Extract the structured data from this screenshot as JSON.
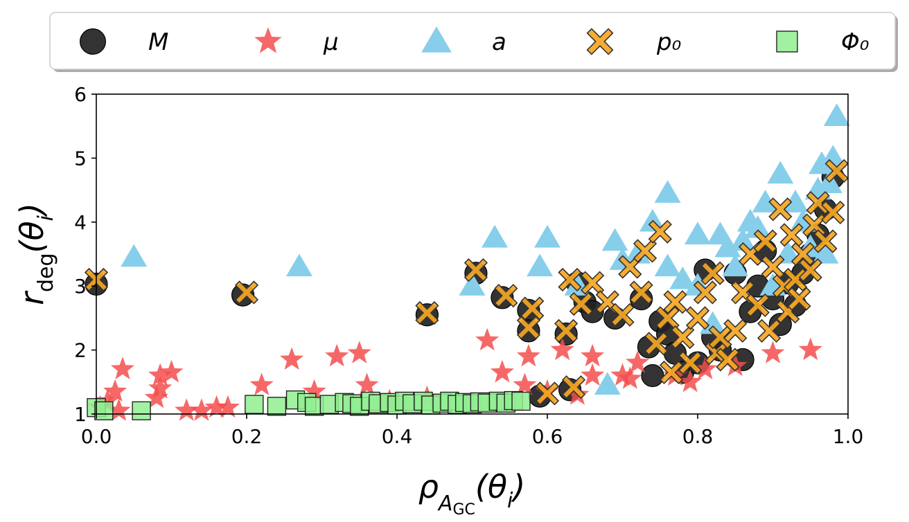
{
  "chart_data": {
    "type": "scatter",
    "xlabel": "ρ_{A_GC}(θ_i)",
    "ylabel": "r_deg(θ_i)",
    "xlim": [
      0.0,
      1.0
    ],
    "ylim": [
      1,
      6
    ],
    "x_ticks": [
      "0.0",
      "0.2",
      "0.4",
      "0.6",
      "0.8",
      "1.0"
    ],
    "y_ticks": [
      "1",
      "2",
      "3",
      "4",
      "5",
      "6"
    ],
    "grid": false,
    "legend_position": "top, above plot, single row",
    "series": [
      {
        "name": "M",
        "marker": "circle",
        "color": "#222222",
        "points": [
          [
            0.0,
            3.03
          ],
          [
            0.195,
            2.86
          ],
          [
            0.44,
            2.55
          ],
          [
            0.505,
            3.2
          ],
          [
            0.54,
            2.82
          ],
          [
            0.575,
            2.62
          ],
          [
            0.575,
            2.3
          ],
          [
            0.59,
            1.28
          ],
          [
            0.625,
            2.25
          ],
          [
            0.63,
            1.38
          ],
          [
            0.64,
            3.05
          ],
          [
            0.65,
            2.75
          ],
          [
            0.66,
            2.6
          ],
          [
            0.69,
            2.5
          ],
          [
            0.725,
            2.8
          ],
          [
            0.735,
            2.05
          ],
          [
            0.74,
            1.6
          ],
          [
            0.75,
            2.45
          ],
          [
            0.76,
            2.25
          ],
          [
            0.77,
            1.95
          ],
          [
            0.78,
            1.65
          ],
          [
            0.8,
            1.8
          ],
          [
            0.81,
            3.25
          ],
          [
            0.82,
            2.2
          ],
          [
            0.83,
            2.0
          ],
          [
            0.85,
            3.2
          ],
          [
            0.86,
            1.85
          ],
          [
            0.87,
            2.6
          ],
          [
            0.88,
            3.0
          ],
          [
            0.89,
            3.55
          ],
          [
            0.9,
            2.8
          ],
          [
            0.91,
            2.4
          ],
          [
            0.92,
            3.05
          ],
          [
            0.93,
            2.7
          ],
          [
            0.94,
            3.2
          ],
          [
            0.95,
            3.5
          ],
          [
            0.96,
            3.8
          ],
          [
            0.97,
            4.2
          ],
          [
            0.98,
            4.7
          ]
        ]
      },
      {
        "name": "μ",
        "marker": "star",
        "color": "#f44d4d",
        "points": [
          [
            0.005,
            1.1
          ],
          [
            0.015,
            1.2
          ],
          [
            0.025,
            1.35
          ],
          [
            0.03,
            1.05
          ],
          [
            0.035,
            1.7
          ],
          [
            0.08,
            1.25
          ],
          [
            0.085,
            1.4
          ],
          [
            0.085,
            1.6
          ],
          [
            0.1,
            1.65
          ],
          [
            0.12,
            1.05
          ],
          [
            0.14,
            1.05
          ],
          [
            0.16,
            1.1
          ],
          [
            0.175,
            1.1
          ],
          [
            0.22,
            1.45
          ],
          [
            0.26,
            1.85
          ],
          [
            0.29,
            1.35
          ],
          [
            0.32,
            1.9
          ],
          [
            0.35,
            1.95
          ],
          [
            0.36,
            1.45
          ],
          [
            0.39,
            1.2
          ],
          [
            0.44,
            1.25
          ],
          [
            0.52,
            2.15
          ],
          [
            0.54,
            1.65
          ],
          [
            0.57,
            1.45
          ],
          [
            0.575,
            1.9
          ],
          [
            0.6,
            1.35
          ],
          [
            0.62,
            2.0
          ],
          [
            0.64,
            1.3
          ],
          [
            0.66,
            1.9
          ],
          [
            0.66,
            1.6
          ],
          [
            0.7,
            1.6
          ],
          [
            0.71,
            1.55
          ],
          [
            0.72,
            1.8
          ],
          [
            0.77,
            1.6
          ],
          [
            0.79,
            1.5
          ],
          [
            0.81,
            1.7
          ],
          [
            0.85,
            1.75
          ],
          [
            0.9,
            1.95
          ],
          [
            0.95,
            2.0
          ]
        ]
      },
      {
        "name": "a",
        "marker": "triangle",
        "color": "#87ceeb",
        "points": [
          [
            0.05,
            3.45
          ],
          [
            0.27,
            3.3
          ],
          [
            0.5,
            3.0
          ],
          [
            0.53,
            3.75
          ],
          [
            0.6,
            3.75
          ],
          [
            0.59,
            3.3
          ],
          [
            0.64,
            3.0
          ],
          [
            0.68,
            1.45
          ],
          [
            0.69,
            3.7
          ],
          [
            0.7,
            3.4
          ],
          [
            0.72,
            3.5
          ],
          [
            0.74,
            4.0
          ],
          [
            0.76,
            4.45
          ],
          [
            0.76,
            3.3
          ],
          [
            0.78,
            3.1
          ],
          [
            0.8,
            3.8
          ],
          [
            0.8,
            3.0
          ],
          [
            0.82,
            2.4
          ],
          [
            0.83,
            3.8
          ],
          [
            0.84,
            3.6
          ],
          [
            0.85,
            3.3
          ],
          [
            0.86,
            3.7
          ],
          [
            0.87,
            4.0
          ],
          [
            0.88,
            3.9
          ],
          [
            0.89,
            4.3
          ],
          [
            0.9,
            3.0
          ],
          [
            0.91,
            4.75
          ],
          [
            0.92,
            3.5
          ],
          [
            0.93,
            4.3
          ],
          [
            0.94,
            4.0
          ],
          [
            0.95,
            3.6
          ],
          [
            0.96,
            4.5
          ],
          [
            0.965,
            4.9
          ],
          [
            0.97,
            3.5
          ],
          [
            0.975,
            4.6
          ],
          [
            0.98,
            5.0
          ],
          [
            0.985,
            5.65
          ]
        ]
      },
      {
        "name": "p₀",
        "marker": "x",
        "color": "#f5a623",
        "points": [
          [
            0.0,
            3.1
          ],
          [
            0.2,
            2.9
          ],
          [
            0.44,
            2.58
          ],
          [
            0.505,
            3.25
          ],
          [
            0.545,
            2.85
          ],
          [
            0.58,
            2.65
          ],
          [
            0.575,
            2.35
          ],
          [
            0.6,
            1.32
          ],
          [
            0.625,
            2.3
          ],
          [
            0.635,
            1.42
          ],
          [
            0.63,
            3.1
          ],
          [
            0.645,
            2.72
          ],
          [
            0.66,
            3.05
          ],
          [
            0.68,
            2.75
          ],
          [
            0.7,
            2.55
          ],
          [
            0.71,
            3.3
          ],
          [
            0.725,
            2.9
          ],
          [
            0.73,
            3.55
          ],
          [
            0.745,
            2.1
          ],
          [
            0.75,
            3.85
          ],
          [
            0.76,
            2.5
          ],
          [
            0.765,
            1.65
          ],
          [
            0.77,
            2.75
          ],
          [
            0.78,
            2.2
          ],
          [
            0.79,
            1.8
          ],
          [
            0.8,
            2.5
          ],
          [
            0.81,
            2.9
          ],
          [
            0.82,
            3.2
          ],
          [
            0.825,
            1.95
          ],
          [
            0.83,
            2.2
          ],
          [
            0.84,
            1.85
          ],
          [
            0.85,
            2.3
          ],
          [
            0.86,
            2.9
          ],
          [
            0.87,
            3.5
          ],
          [
            0.88,
            2.7
          ],
          [
            0.89,
            3.7
          ],
          [
            0.895,
            2.3
          ],
          [
            0.9,
            3.3
          ],
          [
            0.91,
            4.2
          ],
          [
            0.915,
            3.0
          ],
          [
            0.92,
            2.6
          ],
          [
            0.925,
            3.8
          ],
          [
            0.93,
            3.1
          ],
          [
            0.935,
            2.8
          ],
          [
            0.94,
            3.5
          ],
          [
            0.95,
            3.25
          ],
          [
            0.955,
            3.95
          ],
          [
            0.96,
            4.3
          ],
          [
            0.97,
            3.7
          ],
          [
            0.98,
            4.15
          ],
          [
            0.985,
            4.8
          ]
        ]
      },
      {
        "name": "Φ₀",
        "marker": "square",
        "color": "#90ee90",
        "points": [
          [
            0.0,
            1.1
          ],
          [
            0.01,
            1.05
          ],
          [
            0.06,
            1.05
          ],
          [
            0.21,
            1.15
          ],
          [
            0.24,
            1.12
          ],
          [
            0.265,
            1.22
          ],
          [
            0.28,
            1.18
          ],
          [
            0.29,
            1.12
          ],
          [
            0.31,
            1.15
          ],
          [
            0.33,
            1.18
          ],
          [
            0.34,
            1.16
          ],
          [
            0.35,
            1.12
          ],
          [
            0.365,
            1.2
          ],
          [
            0.375,
            1.16
          ],
          [
            0.39,
            1.18
          ],
          [
            0.4,
            1.14
          ],
          [
            0.41,
            1.2
          ],
          [
            0.42,
            1.16
          ],
          [
            0.435,
            1.2
          ],
          [
            0.445,
            1.14
          ],
          [
            0.46,
            1.17
          ],
          [
            0.47,
            1.2
          ],
          [
            0.48,
            1.15
          ],
          [
            0.49,
            1.18
          ],
          [
            0.5,
            1.16
          ],
          [
            0.51,
            1.19
          ],
          [
            0.52,
            1.17
          ],
          [
            0.535,
            1.2
          ],
          [
            0.545,
            1.17
          ],
          [
            0.555,
            1.21
          ],
          [
            0.565,
            1.2
          ]
        ]
      }
    ]
  },
  "colors": {
    "M_edge": "#000000",
    "x_edge": "#333333",
    "square_edge": "#222222"
  }
}
